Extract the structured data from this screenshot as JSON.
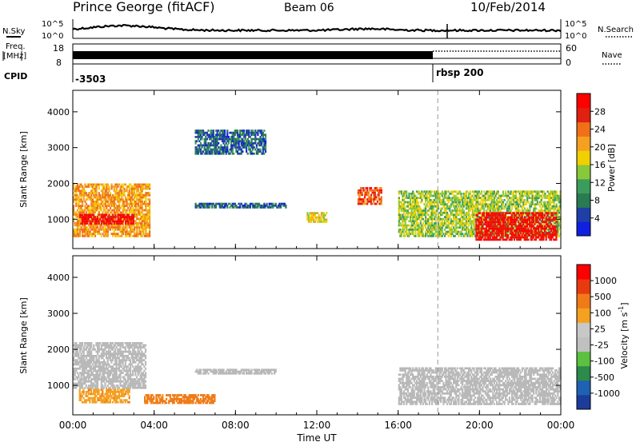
{
  "header": {
    "station": "Prince George (fitACF)",
    "beam": "Beam 06",
    "date": "10/Feb/2014"
  },
  "top_panels": {
    "nsky_label": "N.Sky",
    "nsky_top": "10^5",
    "nsky_bottom": "10^0",
    "nsky_right_top": "10^5",
    "nsky_right_bottom": "10^0",
    "nsearch_label": "N.Search",
    "freq_label_1": "Freq.",
    "freq_label_2": "[MHz]",
    "freq_top": "18",
    "freq_bottom": "8",
    "nave_top": "60",
    "nave_bottom": "0",
    "nave_label": "Nave",
    "cpid_label": "CPID",
    "cpid_value_1": "-3503",
    "cpid_value_2": "rbsp 200"
  },
  "colors": {
    "power_scale": [
      "#1020e0",
      "#1f3fa8",
      "#2a7a52",
      "#3c9c5c",
      "#88c83a",
      "#f0d000",
      "#f5a020",
      "#f07018",
      "#e02010",
      "#ff0000"
    ],
    "velocity_scale": [
      "#1c3c9c",
      "#1f62b4",
      "#2c8a4a",
      "#5cc040",
      "#c0c0c0",
      "#c8c8c8",
      "#f4a020",
      "#f07a18",
      "#e83a10",
      "#ff0000"
    ],
    "ground_scatter": "#b8b8b8"
  },
  "chart_data": [
    {
      "type": "heatmap",
      "title": "Power",
      "ylabel": "Slant Range [km]",
      "yticks": [
        "1000",
        "2000",
        "3000",
        "4000"
      ],
      "ylim": [
        180,
        4600
      ],
      "xlim": [
        "00:00",
        "24:00"
      ],
      "colorbar_label": "Power [dB]",
      "colorbar_ticks": [
        "4",
        "8",
        "12",
        "16",
        "20",
        "24",
        "28"
      ],
      "colorbar_range": [
        0,
        30
      ],
      "regions": [
        {
          "t0": 0.0,
          "t1": 3.8,
          "r0": 500,
          "r1": 2000,
          "value": 20,
          "desc": "main band"
        },
        {
          "t0": 0.3,
          "t1": 3.0,
          "r0": 850,
          "r1": 1150,
          "value": 28
        },
        {
          "t0": 6.0,
          "t1": 9.5,
          "r0": 2800,
          "r1": 3500,
          "value": 6
        },
        {
          "t0": 6.0,
          "t1": 10.5,
          "r0": 1300,
          "r1": 1450,
          "value": 6
        },
        {
          "t0": 11.5,
          "t1": 12.5,
          "r0": 900,
          "r1": 1200,
          "value": 16
        },
        {
          "t0": 14.0,
          "t1": 15.2,
          "r0": 1400,
          "r1": 1900,
          "value": 24
        },
        {
          "t0": 16.0,
          "t1": 24.0,
          "r0": 500,
          "r1": 1800,
          "value": 14
        },
        {
          "t0": 19.8,
          "t1": 23.8,
          "r0": 400,
          "r1": 1200,
          "value": 28
        }
      ]
    },
    {
      "type": "heatmap",
      "title": "Velocity",
      "ylabel": "Slant Range [km]",
      "yticks": [
        "1000",
        "2000",
        "3000",
        "4000"
      ],
      "ylim": [
        180,
        4600
      ],
      "xlim": [
        "00:00",
        "24:00"
      ],
      "colorbar_label": "Velocity [m s^-1]",
      "colorbar_ticks": [
        "1000",
        "500",
        "100",
        "25",
        "-25",
        "-100",
        "-500",
        "-1000"
      ],
      "regions": [
        {
          "t0": 0.0,
          "t1": 3.6,
          "r0": 900,
          "r1": 2200,
          "value": 0,
          "desc": "ground scatter"
        },
        {
          "t0": 0.3,
          "t1": 2.8,
          "r0": 500,
          "r1": 900,
          "value": -200
        },
        {
          "t0": 3.5,
          "t1": 7.0,
          "r0": 480,
          "r1": 750,
          "value": -300
        },
        {
          "t0": 6.0,
          "t1": 10.0,
          "r0": 1300,
          "r1": 1450,
          "value": 0
        },
        {
          "t0": 16.0,
          "t1": 24.0,
          "r0": 450,
          "r1": 1500,
          "value": 0
        }
      ]
    }
  ],
  "xaxis": {
    "ticks": [
      "00:00",
      "04:00",
      "08:00",
      "12:00",
      "16:00",
      "20:00",
      "00:00"
    ],
    "label": "Time UT"
  }
}
